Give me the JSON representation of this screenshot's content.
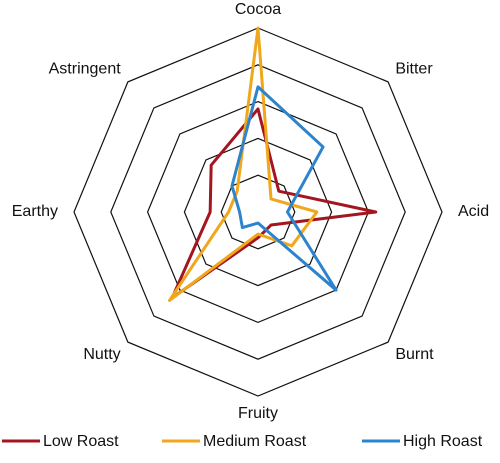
{
  "chart_data": {
    "type": "radar",
    "categories": [
      "Cocoa",
      "Bitter",
      "Acid",
      "Burnt",
      "Fruity",
      "Nutty",
      "Earthy",
      "Astringent"
    ],
    "series": [
      {
        "name": "Low Roast",
        "color": "#a3161f",
        "values": [
          2.8,
          0.8,
          3.2,
          0.5,
          0.7,
          3.3,
          1.3,
          1.8
        ]
      },
      {
        "name": "Medium Roast",
        "color": "#f0a71c",
        "values": [
          5,
          0.5,
          1.6,
          1.3,
          0.6,
          3.4,
          0.8,
          0.8
        ]
      },
      {
        "name": "High Roast",
        "color": "#2d84cc",
        "values": [
          3.4,
          2.5,
          0.8,
          3.0,
          0.3,
          0.6,
          0.5,
          1.0
        ]
      }
    ],
    "rlim": [
      0,
      5
    ],
    "rticks": [
      1,
      2,
      3,
      4,
      5
    ],
    "grid": true,
    "legend": "bottom"
  }
}
